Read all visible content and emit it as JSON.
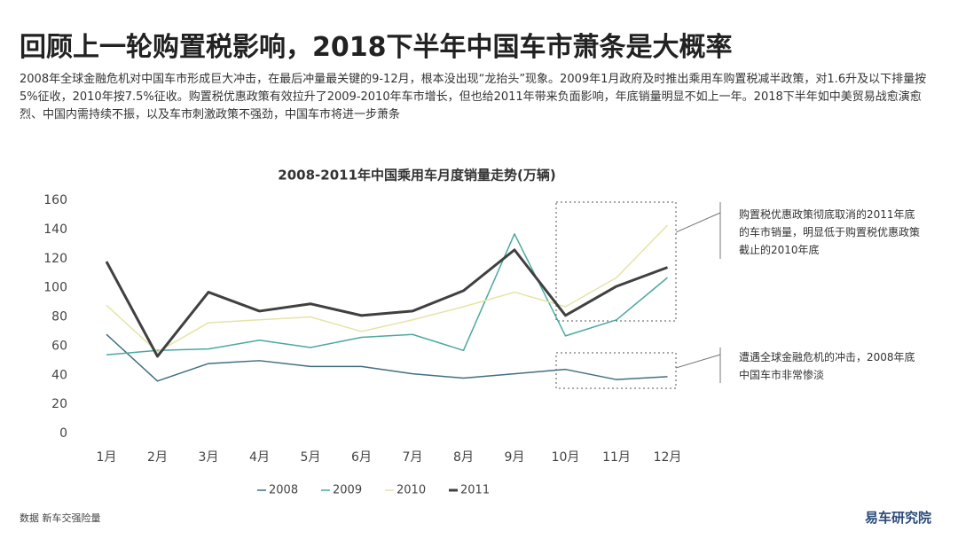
{
  "header": {
    "title": "回顾上一轮购置税影响，2018下半年中国车市萧条是大概率",
    "text": "2008年全球金融危机对中国车市形成巨大冲击，在最后冲量最关键的9-12月，根本没出现“龙抬头”现象。2009年1月政府及时推出乘用车购置税减半政策，对1.6升及以下排量按5%征收，2010年按7.5%征收。购置税优惠政策有效拉升了2009-2010年车市增长，但也给2011年带来负面影响，年底销量明显不如上一年。2018下半年如中美贸易战愈演愈烈、中国内需持续不振，以及车市刺激政策不强劲，中国车市将进一步萧条"
  },
  "chart_data": {
    "type": "line",
    "title": "2008-2011年中国乘用车月度销量走势(万辆)",
    "categories": [
      "1月",
      "2月",
      "3月",
      "4月",
      "5月",
      "6月",
      "7月",
      "8月",
      "9月",
      "10月",
      "11月",
      "12月"
    ],
    "series": [
      {
        "name": "2008",
        "color": "#3f6f80",
        "values": [
          68,
          36,
          48,
          50,
          46,
          46,
          41,
          38,
          41,
          44,
          37,
          39
        ]
      },
      {
        "name": "2009",
        "color": "#4aa8a0",
        "values": [
          54,
          57,
          58,
          64,
          59,
          66,
          68,
          57,
          137,
          67,
          78,
          107
        ]
      },
      {
        "name": "2010",
        "color": "#e6e3a6",
        "values": [
          88,
          56,
          76,
          78,
          80,
          70,
          78,
          87,
          97,
          87,
          107,
          143
        ]
      },
      {
        "name": "2011",
        "color": "#404040",
        "values": [
          118,
          53,
          97,
          84,
          89,
          81,
          84,
          98,
          126,
          81,
          101,
          114
        ]
      }
    ],
    "ylim": [
      0,
      160
    ],
    "yticks": [
      0,
      20,
      40,
      60,
      80,
      100,
      120,
      140,
      160
    ],
    "legend": "bottom",
    "annotations": [
      "购置税优惠政策彻底取消的2011年底的车市销量，明显低于购置税优惠政策截止的2010年底",
      "遭遇全球金融危机的冲击，2008年底中国车市非常惨淡"
    ]
  },
  "footer": {
    "source": "数据  新车交强险量",
    "logo": "易车研究院"
  }
}
